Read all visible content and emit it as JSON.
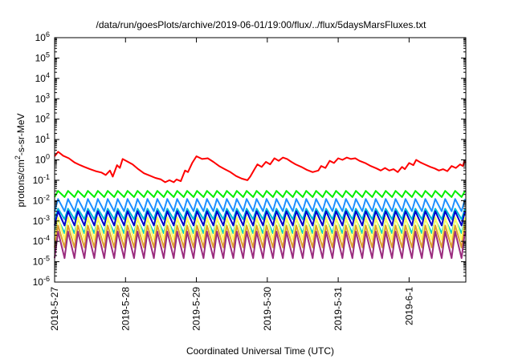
{
  "chart_data": {
    "type": "line",
    "title": "/data/run/goesPlots/archive/2019-06-01/19:00/flux/../flux/5daysMarsFluxes.txt",
    "xlabel": "Coordinated Universal Time (UTC)",
    "ylabel_main": "protons/cm",
    "ylabel_sup": "2",
    "ylabel_rest": "-s-sr-MeV",
    "y_scale": "log",
    "ylim_exp": [
      -6,
      6
    ],
    "y_tick_exponents": [
      -6,
      -5,
      -4,
      -3,
      -2,
      -1,
      0,
      1,
      2,
      3,
      4,
      5,
      6
    ],
    "xlim_days": [
      0,
      5.8
    ],
    "x_ticks": [
      {
        "day": 0,
        "label": "2019-5-27"
      },
      {
        "day": 1,
        "label": "2019-5-28"
      },
      {
        "day": 2,
        "label": "2019-5-29"
      },
      {
        "day": 3,
        "label": "2019-5-30"
      },
      {
        "day": 4,
        "label": "2019-5-31"
      },
      {
        "day": 5,
        "label": "2019-6-1"
      }
    ],
    "grid": false,
    "legend": "none",
    "series": [
      {
        "color": "#ff0000",
        "points": [
          [
            0.0,
            1.5
          ],
          [
            0.05,
            2.5
          ],
          [
            0.12,
            1.6
          ],
          [
            0.2,
            1.2
          ],
          [
            0.28,
            0.75
          ],
          [
            0.36,
            0.55
          ],
          [
            0.42,
            0.45
          ],
          [
            0.5,
            0.35
          ],
          [
            0.58,
            0.28
          ],
          [
            0.66,
            0.24
          ],
          [
            0.72,
            0.18
          ],
          [
            0.78,
            0.3
          ],
          [
            0.82,
            0.15
          ],
          [
            0.88,
            0.55
          ],
          [
            0.92,
            0.4
          ],
          [
            0.96,
            1.1
          ],
          [
            1.02,
            0.85
          ],
          [
            1.1,
            0.6
          ],
          [
            1.18,
            0.35
          ],
          [
            1.26,
            0.22
          ],
          [
            1.34,
            0.17
          ],
          [
            1.42,
            0.13
          ],
          [
            1.5,
            0.11
          ],
          [
            1.56,
            0.08
          ],
          [
            1.62,
            0.1
          ],
          [
            1.68,
            0.08
          ],
          [
            1.72,
            0.11
          ],
          [
            1.78,
            0.09
          ],
          [
            1.84,
            0.3
          ],
          [
            1.88,
            0.25
          ],
          [
            1.94,
            0.7
          ],
          [
            2.0,
            1.5
          ],
          [
            2.08,
            1.1
          ],
          [
            2.16,
            1.2
          ],
          [
            2.24,
            0.8
          ],
          [
            2.32,
            0.5
          ],
          [
            2.4,
            0.35
          ],
          [
            2.48,
            0.25
          ],
          [
            2.56,
            0.16
          ],
          [
            2.64,
            0.12
          ],
          [
            2.72,
            0.1
          ],
          [
            2.76,
            0.15
          ],
          [
            2.82,
            0.35
          ],
          [
            2.86,
            0.6
          ],
          [
            2.92,
            0.45
          ],
          [
            2.98,
            0.8
          ],
          [
            3.04,
            0.6
          ],
          [
            3.1,
            1.2
          ],
          [
            3.16,
            0.9
          ],
          [
            3.22,
            1.3
          ],
          [
            3.28,
            1.1
          ],
          [
            3.34,
            0.8
          ],
          [
            3.4,
            0.6
          ],
          [
            3.48,
            0.45
          ],
          [
            3.56,
            0.32
          ],
          [
            3.64,
            0.25
          ],
          [
            3.72,
            0.3
          ],
          [
            3.76,
            0.5
          ],
          [
            3.82,
            0.4
          ],
          [
            3.88,
            0.9
          ],
          [
            3.94,
            0.7
          ],
          [
            4.0,
            1.2
          ],
          [
            4.06,
            1.0
          ],
          [
            4.12,
            1.3
          ],
          [
            4.18,
            1.1
          ],
          [
            4.24,
            1.2
          ],
          [
            4.3,
            0.9
          ],
          [
            4.38,
            0.7
          ],
          [
            4.46,
            0.5
          ],
          [
            4.54,
            0.38
          ],
          [
            4.6,
            0.3
          ],
          [
            4.66,
            0.4
          ],
          [
            4.72,
            0.3
          ],
          [
            4.78,
            0.35
          ],
          [
            4.84,
            0.25
          ],
          [
            4.9,
            0.45
          ],
          [
            4.94,
            0.35
          ],
          [
            5.0,
            0.7
          ],
          [
            5.06,
            0.55
          ],
          [
            5.1,
            1.0
          ],
          [
            5.16,
            0.75
          ],
          [
            5.22,
            0.6
          ],
          [
            5.3,
            0.45
          ],
          [
            5.36,
            0.38
          ],
          [
            5.42,
            0.3
          ],
          [
            5.48,
            0.35
          ],
          [
            5.54,
            0.28
          ],
          [
            5.6,
            0.5
          ],
          [
            5.66,
            0.4
          ],
          [
            5.72,
            0.6
          ],
          [
            5.76,
            0.5
          ],
          [
            5.78,
            0.9
          ],
          [
            5.8,
            0.7
          ]
        ]
      },
      {
        "color": "#00ee00",
        "period": 0.14,
        "ymax": 0.03,
        "ymin": 0.015
      },
      {
        "color": "#1e90ff",
        "period": 0.14,
        "ymax": 0.012,
        "ymin": 0.003
      },
      {
        "color": "#00b7d8",
        "period": 0.14,
        "ymax": 0.004,
        "ymin": 0.0012
      },
      {
        "color": "#0000cd",
        "period": 0.14,
        "ymax": 0.003,
        "ymin": 0.0006
      },
      {
        "color": "#00cccc",
        "period": 0.14,
        "ymax": 0.0012,
        "ymin": 0.00025
      },
      {
        "color": "#ffff66",
        "period": 0.14,
        "ymax": 0.0015,
        "ymin": 0.00012
      },
      {
        "color": "#dda030",
        "period": 0.14,
        "ymax": 0.0006,
        "ymin": 5e-05
      },
      {
        "color": "#9b2d7f",
        "period": 0.14,
        "ymax": 0.0003,
        "ymin": 1.5e-05
      }
    ]
  }
}
